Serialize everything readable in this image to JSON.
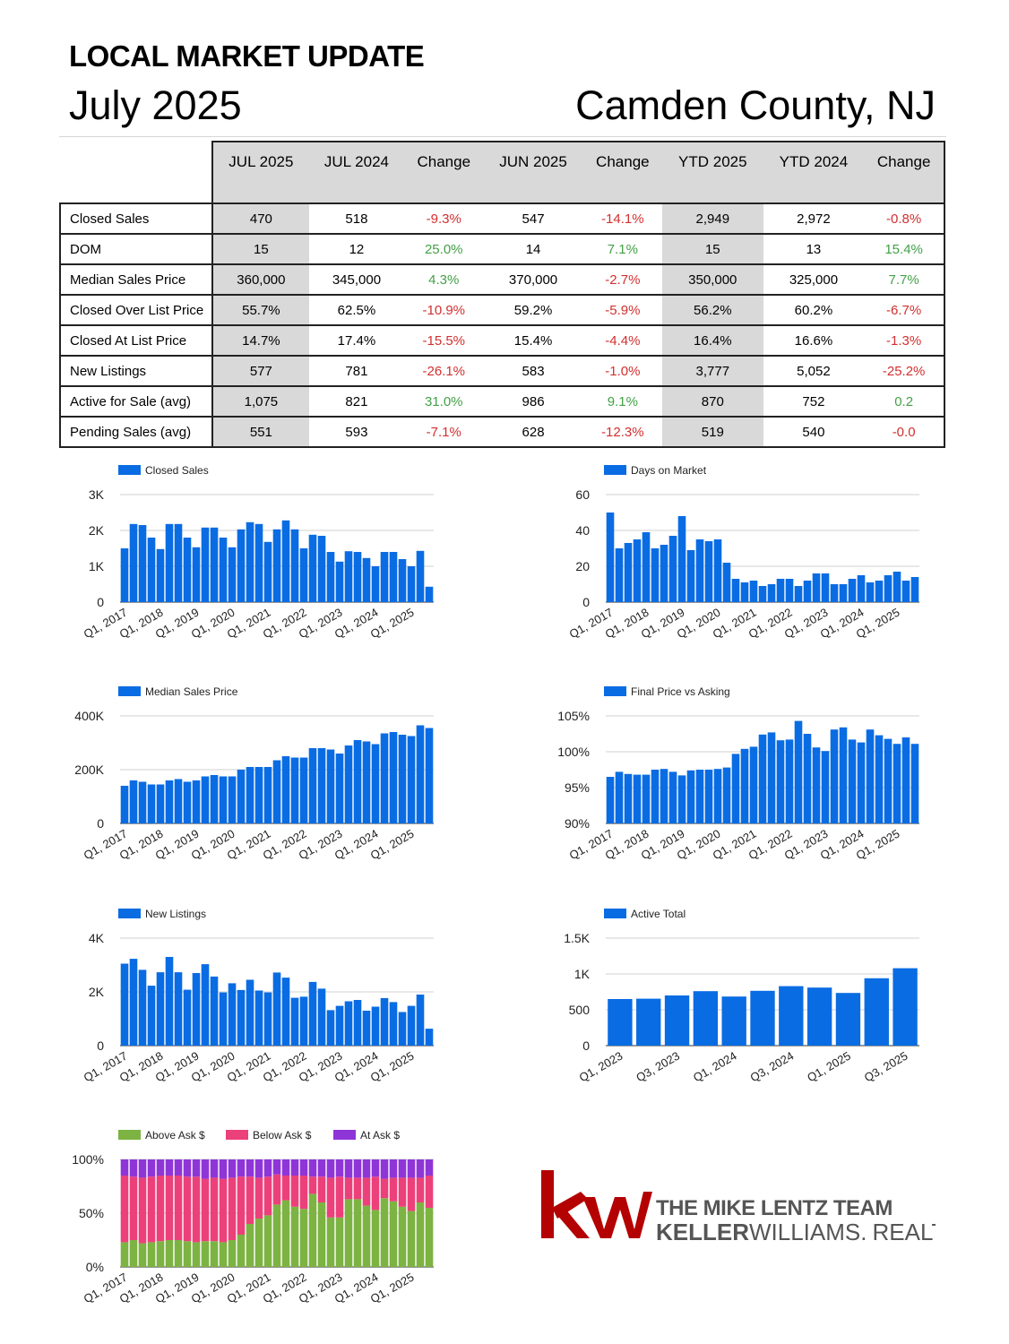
{
  "header": {
    "title": "LOCAL MARKET UPDATE",
    "month": "July 2025",
    "county": "Camden County, NJ"
  },
  "table": {
    "columns": [
      "JUL 2025",
      "JUL 2024",
      "Change",
      "JUN 2025",
      "Change",
      "YTD 2025",
      "YTD 2024",
      "Change"
    ],
    "rows": [
      {
        "label": "Closed Sales",
        "cells": [
          "470",
          "518",
          "-9.3%",
          "547",
          "-14.1%",
          "2,949",
          "2,972",
          "-0.8%"
        ]
      },
      {
        "label": "DOM",
        "cells": [
          "15",
          "12",
          "25.0%",
          "14",
          "7.1%",
          "15",
          "13",
          "15.4%"
        ]
      },
      {
        "label": "Median Sales Price",
        "cells": [
          "360,000",
          "345,000",
          "4.3%",
          "370,000",
          "-2.7%",
          "350,000",
          "325,000",
          "7.7%"
        ]
      },
      {
        "label": "Closed Over List Price",
        "cells": [
          "55.7%",
          "62.5%",
          "-10.9%",
          "59.2%",
          "-5.9%",
          "56.2%",
          "60.2%",
          "-6.7%"
        ]
      },
      {
        "label": "Closed At List Price",
        "cells": [
          "14.7%",
          "17.4%",
          "-15.5%",
          "15.4%",
          "-4.4%",
          "16.4%",
          "16.6%",
          "-1.3%"
        ]
      },
      {
        "label": "New Listings",
        "cells": [
          "577",
          "781",
          "-26.1%",
          "583",
          "-1.0%",
          "3,777",
          "5,052",
          "-25.2%"
        ]
      },
      {
        "label": "Active for Sale (avg)",
        "cells": [
          "1,075",
          "821",
          "31.0%",
          "986",
          "9.1%",
          "870",
          "752",
          "0.2"
        ]
      },
      {
        "label": "Pending Sales (avg)",
        "cells": [
          "551",
          "593",
          "-7.1%",
          "628",
          "-12.3%",
          "519",
          "540",
          "-0.0"
        ]
      }
    ]
  },
  "colors": {
    "bar": "#0a6ce3",
    "positive": "#43a047",
    "negative": "#d32f2f",
    "above": "#7cb342",
    "below": "#ec407a",
    "at": "#8e35d8",
    "logo_red": "#b40101",
    "logo_gray": "#555555"
  },
  "chart_data": [
    {
      "id": "closed_sales",
      "type": "bar",
      "series_name": "Closed Sales",
      "ylim": [
        0,
        3000
      ],
      "yticks": [
        0,
        1000,
        2000,
        3000
      ],
      "ytick_labels": [
        "0",
        "1K",
        "2K",
        "3K"
      ],
      "xtick_labels": [
        "Q1, 2017",
        "Q1, 2018",
        "Q1, 2019",
        "Q1, 2020",
        "Q1, 2021",
        "Q1, 2022",
        "Q1, 2023",
        "Q1, 2024",
        "Q1, 2025"
      ],
      "xtick_index": [
        0,
        4,
        8,
        12,
        16,
        20,
        24,
        28,
        32
      ],
      "values": [
        1500,
        2180,
        2150,
        1800,
        1480,
        2180,
        2180,
        1800,
        1530,
        2080,
        2080,
        1800,
        1530,
        2030,
        2230,
        2180,
        1680,
        2030,
        2280,
        2030,
        1500,
        1880,
        1850,
        1400,
        1130,
        1420,
        1400,
        1230,
        1000,
        1400,
        1400,
        1200,
        1000,
        1430,
        430
      ]
    },
    {
      "id": "dom",
      "type": "bar",
      "series_name": "Days on Market",
      "ylim": [
        0,
        60
      ],
      "yticks": [
        0,
        20,
        40,
        60
      ],
      "ytick_labels": [
        "0",
        "20",
        "40",
        "60"
      ],
      "xtick_labels": [
        "Q1, 2017",
        "Q1, 2018",
        "Q1, 2019",
        "Q1, 2020",
        "Q1, 2021",
        "Q1, 2022",
        "Q1, 2023",
        "Q1, 2024",
        "Q1, 2025"
      ],
      "xtick_index": [
        0,
        4,
        8,
        12,
        16,
        20,
        24,
        28,
        32
      ],
      "values": [
        50,
        30,
        33,
        35,
        39,
        30,
        32,
        37,
        48,
        29,
        35,
        34,
        35,
        22,
        13,
        11,
        12,
        9,
        10,
        13,
        13,
        9,
        12,
        16,
        16,
        10,
        10,
        13,
        15,
        11,
        12,
        15,
        17,
        12,
        14
      ]
    },
    {
      "id": "median_price",
      "type": "bar",
      "series_name": "Median Sales Price",
      "ylim": [
        0,
        400000
      ],
      "yticks": [
        0,
        200000,
        400000
      ],
      "ytick_labels": [
        "0",
        "200K",
        "400K"
      ],
      "xtick_labels": [
        "Q1, 2017",
        "Q1, 2018",
        "Q1, 2019",
        "Q1, 2020",
        "Q1, 2021",
        "Q1, 2022",
        "Q1, 2023",
        "Q1, 2024",
        "Q1, 2025"
      ],
      "xtick_index": [
        0,
        4,
        8,
        12,
        16,
        20,
        24,
        28,
        32
      ],
      "values": [
        140000,
        160000,
        155000,
        145000,
        145000,
        160000,
        165000,
        155000,
        160000,
        175000,
        180000,
        175000,
        175000,
        200000,
        210000,
        210000,
        210000,
        235000,
        250000,
        245000,
        245000,
        280000,
        280000,
        275000,
        260000,
        290000,
        310000,
        305000,
        295000,
        335000,
        340000,
        330000,
        325000,
        365000,
        355000
      ]
    },
    {
      "id": "final_vs_asking",
      "type": "bar",
      "series_name": "Final Price vs Asking",
      "ylim": [
        90,
        105
      ],
      "yticks": [
        90,
        95,
        100,
        105
      ],
      "ytick_labels": [
        "90%",
        "95%",
        "100%",
        "105%"
      ],
      "xtick_labels": [
        "Q1, 2017",
        "Q1, 2018",
        "Q1, 2019",
        "Q1, 2020",
        "Q1, 2021",
        "Q1, 2022",
        "Q1, 2023",
        "Q1, 2024",
        "Q1, 2025"
      ],
      "xtick_index": [
        0,
        4,
        8,
        12,
        16,
        20,
        24,
        28,
        32
      ],
      "values": [
        96.5,
        97.2,
        96.9,
        96.8,
        96.8,
        97.5,
        97.6,
        97.2,
        96.7,
        97.4,
        97.5,
        97.5,
        97.6,
        97.8,
        99.7,
        100.4,
        100.7,
        102.4,
        102.7,
        101.6,
        101.7,
        104.3,
        102.5,
        100.6,
        100.1,
        103.1,
        103.4,
        101.7,
        101.3,
        103.1,
        102.3,
        101.8,
        101.1,
        102.0,
        101.1
      ]
    },
    {
      "id": "new_listings",
      "type": "bar",
      "series_name": "New Listings",
      "ylim": [
        0,
        4000
      ],
      "yticks": [
        0,
        2000,
        4000
      ],
      "ytick_labels": [
        "0",
        "2K",
        "4K"
      ],
      "xtick_labels": [
        "Q1, 2017",
        "Q1, 2018",
        "Q1, 2019",
        "Q1, 2020",
        "Q1, 2021",
        "Q1, 2022",
        "Q1, 2023",
        "Q1, 2024",
        "Q1, 2025"
      ],
      "xtick_index": [
        0,
        4,
        8,
        12,
        16,
        20,
        24,
        28,
        32
      ],
      "values": [
        3050,
        3230,
        2820,
        2230,
        2730,
        3300,
        2730,
        2080,
        2700,
        3030,
        2570,
        1980,
        2320,
        2070,
        2450,
        2050,
        1980,
        2720,
        2530,
        1780,
        1820,
        2370,
        2120,
        1320,
        1480,
        1650,
        1700,
        1300,
        1450,
        1770,
        1620,
        1250,
        1480,
        1900,
        630
      ]
    },
    {
      "id": "active_total",
      "type": "bar",
      "series_name": "Active Total",
      "ylim": [
        0,
        1500
      ],
      "yticks": [
        0,
        500,
        1000,
        1500
      ],
      "ytick_labels": [
        "0",
        "500",
        "1K",
        "1.5K"
      ],
      "xtick_labels": [
        "Q1, 2023",
        "Q3, 2023",
        "Q1, 2024",
        "Q3, 2024",
        "Q1, 2025",
        "Q3, 2025"
      ],
      "xtick_index": [
        0,
        2,
        4,
        6,
        8,
        10
      ],
      "values": [
        650,
        655,
        700,
        760,
        685,
        765,
        830,
        810,
        735,
        940,
        1080
      ]
    },
    {
      "id": "ask_breakdown",
      "type": "bar",
      "stacked": true,
      "ylim": [
        0,
        100
      ],
      "yticks": [
        0,
        50,
        100
      ],
      "ytick_labels": [
        "0%",
        "50%",
        "100%"
      ],
      "xtick_labels": [
        "Q1, 2017",
        "Q1, 2018",
        "Q1, 2019",
        "Q1, 2020",
        "Q1, 2021",
        "Q1, 2022",
        "Q1, 2023",
        "Q1, 2024",
        "Q1, 2025"
      ],
      "xtick_index": [
        0,
        4,
        8,
        12,
        16,
        20,
        24,
        28,
        32
      ],
      "series": [
        {
          "name": "Above Ask $",
          "values": [
            23,
            25,
            22,
            23,
            24,
            25,
            25,
            24,
            23,
            24,
            24,
            23,
            25,
            30,
            40,
            45,
            48,
            58,
            62,
            56,
            54,
            68,
            60,
            46,
            46,
            63,
            63,
            57,
            53,
            64,
            61,
            56,
            52,
            60,
            55
          ]
        },
        {
          "name": "Below Ask $",
          "values": [
            62,
            59,
            61,
            61,
            61,
            60,
            60,
            60,
            61,
            58,
            59,
            59,
            58,
            54,
            44,
            38,
            36,
            28,
            23,
            29,
            31,
            16,
            24,
            37,
            38,
            20,
            20,
            26,
            31,
            18,
            22,
            27,
            31,
            23,
            30
          ]
        },
        {
          "name": "At Ask $",
          "values": [
            15,
            16,
            17,
            16,
            15,
            15,
            15,
            16,
            16,
            18,
            17,
            18,
            17,
            16,
            16,
            17,
            16,
            14,
            15,
            15,
            15,
            16,
            16,
            17,
            16,
            17,
            17,
            17,
            16,
            18,
            17,
            17,
            17,
            17,
            15
          ]
        }
      ]
    }
  ],
  "logo": {
    "mark": "kw",
    "team": "THE MIKE LENTZ TEAM",
    "brand_bold": "KELLER",
    "brand_light": "WILLIAMS.",
    "brand_realty": "REALTY"
  }
}
